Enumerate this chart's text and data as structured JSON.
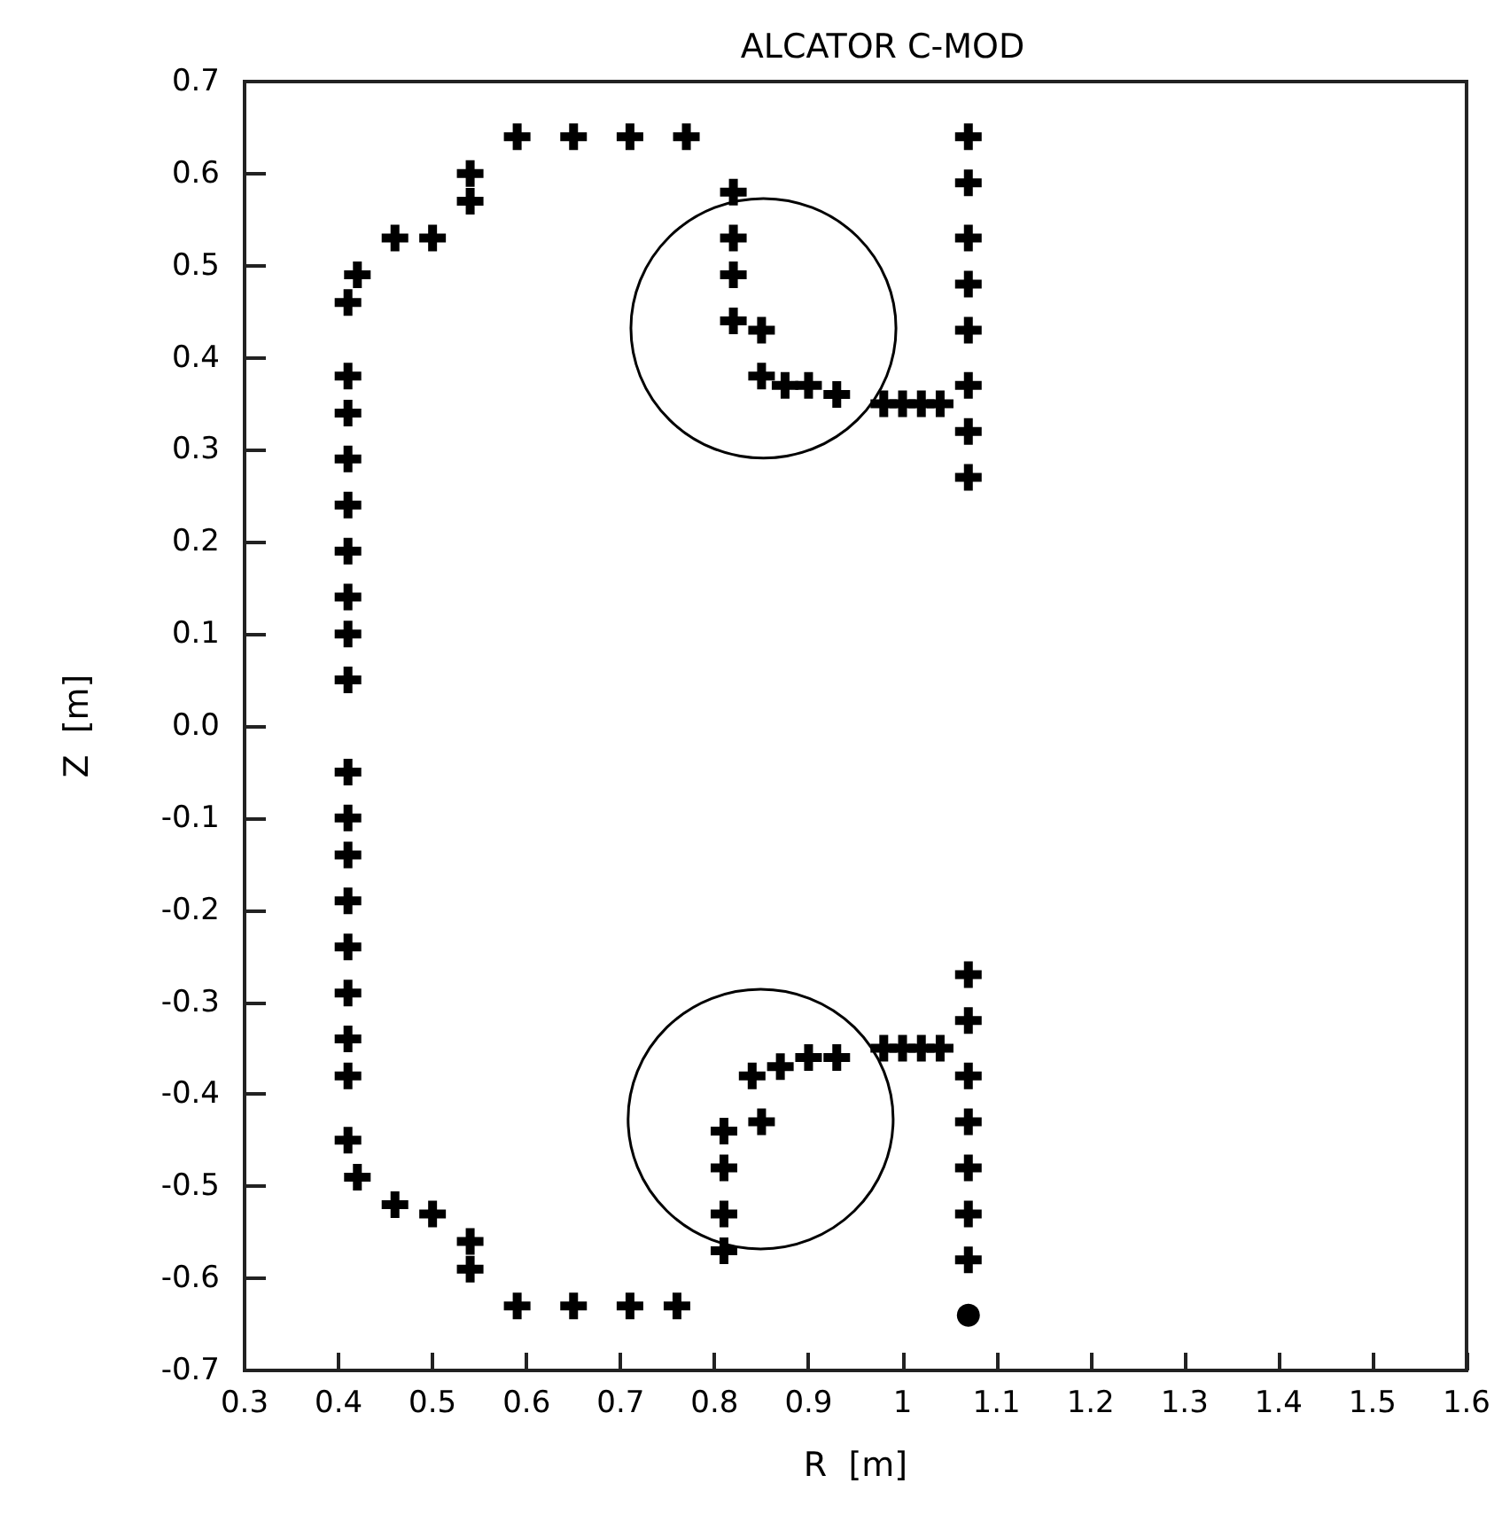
{
  "chart_data": {
    "type": "scatter",
    "title": "ALCATOR C-MOD",
    "xlabel": "R  [m]",
    "ylabel": "Z  [m]",
    "xlim": [
      0.3,
      1.6
    ],
    "xticks": [
      0.3,
      0.4,
      0.5,
      0.6,
      0.7,
      0.8,
      0.9,
      1,
      1.1,
      1.2,
      1.3,
      1.4,
      1.5,
      1.6
    ],
    "ylim": [
      -0.7,
      0.7
    ],
    "yticks": [
      -0.7,
      -0.6,
      -0.5,
      -0.4,
      -0.3,
      -0.2,
      -0.1,
      {
        "value": 0,
        "label": "0.0"
      },
      0.1,
      0.2,
      0.3,
      0.4,
      0.5,
      0.6,
      0.7
    ],
    "grid": false,
    "series": [
      {
        "marker": "cross",
        "color": "#000000",
        "x": [
          0.59,
          0.65,
          0.71,
          0.77,
          0.54,
          0.54,
          0.46,
          0.5,
          0.42,
          0.41,
          0.41,
          0.41,
          0.41,
          0.41,
          0.41,
          0.41,
          0.41,
          0.41,
          0.41,
          0.41,
          0.41,
          0.41,
          0.41,
          0.41,
          0.41,
          0.41,
          0.41,
          0.42,
          0.46,
          0.5,
          0.54,
          0.54,
          0.59,
          0.65,
          0.71,
          0.76,
          1.07,
          1.07,
          1.07,
          1.07,
          1.07,
          1.07,
          1.07,
          1.07,
          1.07,
          1.07,
          1.07,
          1.07,
          1.07,
          1.07,
          1.07,
          0.82,
          0.82,
          0.82,
          0.82,
          0.85,
          0.85,
          0.875,
          0.9,
          0.93,
          0.98,
          1,
          1.02,
          1.04,
          0.81,
          0.81,
          0.81,
          0.81,
          0.85,
          0.84,
          0.87,
          0.9,
          0.93,
          0.98,
          1,
          1.02,
          1.04
        ],
        "values": [
          0.64,
          0.64,
          0.64,
          0.64,
          0.6,
          0.57,
          0.53,
          0.53,
          0.49,
          0.46,
          0.38,
          0.34,
          0.29,
          0.24,
          0.19,
          0.14,
          0.1,
          0.05,
          -0.05,
          -0.1,
          -0.14,
          -0.19,
          -0.24,
          -0.29,
          -0.34,
          -0.38,
          -0.45,
          -0.49,
          -0.52,
          -0.53,
          -0.56,
          -0.59,
          -0.63,
          -0.63,
          -0.63,
          -0.63,
          0.64,
          0.59,
          0.53,
          0.48,
          0.43,
          0.37,
          0.32,
          0.27,
          -0.27,
          -0.32,
          -0.38,
          -0.43,
          -0.48,
          -0.53,
          -0.58,
          0.58,
          0.53,
          0.49,
          0.44,
          0.43,
          0.38,
          0.37,
          0.37,
          0.36,
          0.35,
          0.35,
          0.35,
          0.35,
          -0.44,
          -0.48,
          -0.53,
          -0.57,
          -0.43,
          -0.38,
          -0.37,
          -0.36,
          -0.36,
          -0.35,
          -0.35,
          -0.35,
          -0.35
        ]
      },
      {
        "marker": "circle",
        "color": "#000000",
        "x": [
          1.07
        ],
        "values": [
          -0.64
        ]
      }
    ]
  }
}
